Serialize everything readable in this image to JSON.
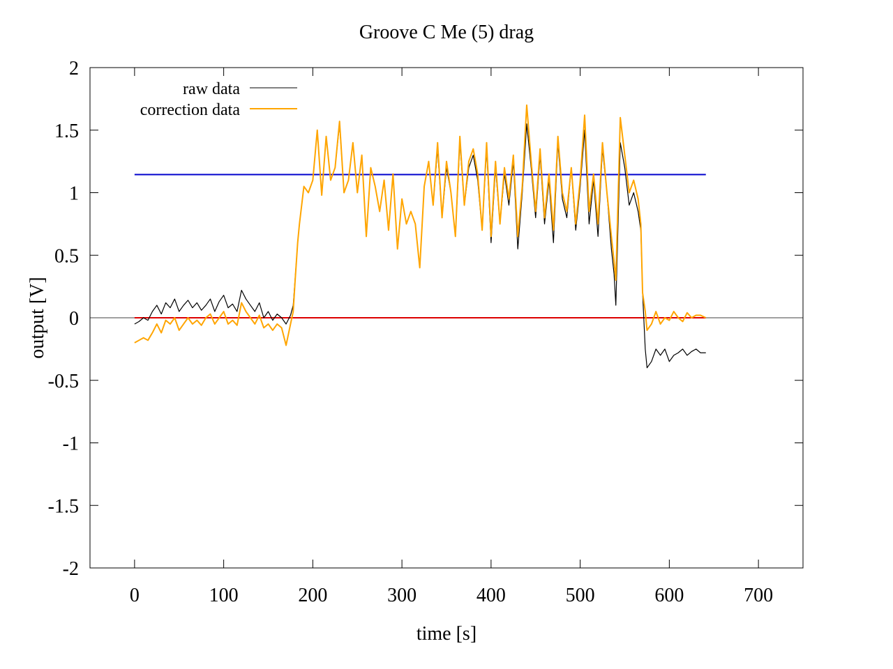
{
  "chart_data": {
    "type": "line",
    "title": "Groove C  Me (5) drag",
    "xlabel": "time [s]",
    "ylabel": "output [V]",
    "xlim": [
      -50,
      750
    ],
    "ylim": [
      -2,
      2
    ],
    "xticks": [
      0,
      100,
      200,
      300,
      400,
      500,
      600,
      700
    ],
    "yticks": [
      2,
      1.5,
      1,
      0.5,
      0,
      -0.5,
      -1,
      -1.5,
      -2
    ],
    "grid": false,
    "legend_position": "top-left",
    "reference_lines": [
      {
        "y": 0,
        "x_range": [
          -50,
          750
        ],
        "color": "#a0a0a0"
      },
      {
        "y": 1.145,
        "x_range": [
          0,
          641
        ],
        "color": "#0000cc"
      },
      {
        "y": 0,
        "x_range": [
          0,
          641
        ],
        "color": "#dd0000"
      }
    ],
    "series": [
      {
        "name": "raw data",
        "color": "#000000",
        "x": [
          0,
          5,
          10,
          15,
          20,
          25,
          30,
          35,
          40,
          45,
          50,
          55,
          60,
          65,
          70,
          75,
          80,
          85,
          90,
          95,
          100,
          105,
          110,
          115,
          120,
          125,
          130,
          135,
          140,
          145,
          150,
          155,
          160,
          165,
          170,
          175,
          178,
          180,
          183,
          185,
          190,
          195,
          200,
          205,
          210,
          215,
          220,
          225,
          230,
          235,
          240,
          245,
          250,
          255,
          260,
          265,
          270,
          275,
          280,
          285,
          290,
          295,
          300,
          305,
          310,
          315,
          320,
          325,
          330,
          335,
          340,
          345,
          350,
          355,
          360,
          365,
          370,
          375,
          380,
          385,
          390,
          395,
          400,
          405,
          410,
          415,
          420,
          425,
          430,
          435,
          440,
          445,
          450,
          455,
          460,
          465,
          470,
          475,
          480,
          485,
          490,
          495,
          500,
          505,
          510,
          515,
          520,
          525,
          530,
          535,
          538,
          540,
          545,
          550,
          555,
          560,
          565,
          568,
          570,
          573,
          575,
          580,
          585,
          590,
          595,
          600,
          605,
          610,
          615,
          620,
          625,
          630,
          635,
          641
        ],
        "y": [
          -0.05,
          -0.03,
          0.0,
          -0.02,
          0.05,
          0.1,
          0.03,
          0.12,
          0.08,
          0.15,
          0.05,
          0.1,
          0.14,
          0.08,
          0.12,
          0.06,
          0.1,
          0.15,
          0.05,
          0.13,
          0.18,
          0.08,
          0.11,
          0.05,
          0.22,
          0.15,
          0.1,
          0.05,
          0.12,
          0.0,
          0.05,
          -0.02,
          0.03,
          0.0,
          -0.05,
          0.02,
          0.1,
          0.3,
          0.6,
          0.75,
          1.05,
          1.0,
          1.1,
          1.5,
          0.98,
          1.45,
          1.1,
          1.2,
          1.55,
          1.0,
          1.1,
          1.4,
          1.0,
          1.3,
          0.65,
          1.2,
          1.05,
          0.85,
          1.1,
          0.7,
          1.15,
          0.55,
          0.95,
          0.75,
          0.85,
          0.75,
          0.4,
          1.05,
          1.25,
          0.9,
          1.35,
          0.8,
          1.2,
          1.0,
          0.65,
          1.4,
          0.9,
          1.2,
          1.3,
          1.1,
          0.7,
          1.35,
          0.6,
          1.2,
          0.75,
          1.15,
          0.9,
          1.25,
          0.55,
          1.0,
          1.55,
          1.2,
          0.8,
          1.3,
          0.75,
          1.1,
          0.6,
          1.4,
          0.95,
          0.8,
          1.2,
          0.7,
          1.05,
          1.5,
          0.75,
          1.1,
          0.65,
          1.35,
          1.0,
          0.55,
          0.35,
          0.1,
          1.4,
          1.2,
          0.9,
          1.0,
          0.85,
          0.7,
          0.2,
          -0.25,
          -0.4,
          -0.35,
          -0.25,
          -0.3,
          -0.25,
          -0.35,
          -0.3,
          -0.28,
          -0.25,
          -0.3,
          -0.27,
          -0.25,
          -0.28,
          -0.28
        ]
      },
      {
        "name": "correction data",
        "color": "#ffa500",
        "x": [
          0,
          5,
          10,
          15,
          20,
          25,
          30,
          35,
          40,
          45,
          50,
          55,
          60,
          65,
          70,
          75,
          80,
          85,
          90,
          95,
          100,
          105,
          110,
          115,
          120,
          125,
          130,
          135,
          140,
          145,
          150,
          155,
          160,
          165,
          170,
          175,
          178,
          180,
          183,
          185,
          190,
          195,
          200,
          205,
          210,
          215,
          220,
          225,
          230,
          235,
          240,
          245,
          250,
          255,
          260,
          265,
          270,
          275,
          280,
          285,
          290,
          295,
          300,
          305,
          310,
          315,
          320,
          325,
          330,
          335,
          340,
          345,
          350,
          355,
          360,
          365,
          370,
          375,
          380,
          385,
          390,
          395,
          400,
          405,
          410,
          415,
          420,
          425,
          430,
          435,
          440,
          445,
          450,
          455,
          460,
          465,
          470,
          475,
          480,
          485,
          490,
          495,
          500,
          505,
          510,
          515,
          520,
          525,
          530,
          535,
          538,
          540,
          545,
          550,
          555,
          560,
          565,
          568,
          570,
          573,
          575,
          580,
          585,
          590,
          595,
          600,
          605,
          610,
          615,
          620,
          625,
          630,
          635,
          641
        ],
        "y": [
          -0.2,
          -0.18,
          -0.16,
          -0.18,
          -0.12,
          -0.05,
          -0.12,
          -0.02,
          -0.05,
          0.0,
          -0.1,
          -0.05,
          0.0,
          -0.05,
          -0.02,
          -0.06,
          0.0,
          0.03,
          -0.05,
          0.0,
          0.05,
          -0.05,
          -0.02,
          -0.06,
          0.12,
          0.05,
          0.0,
          -0.05,
          0.02,
          -0.08,
          -0.05,
          -0.1,
          -0.05,
          -0.08,
          -0.22,
          -0.05,
          0.05,
          0.28,
          0.6,
          0.75,
          1.05,
          1.0,
          1.1,
          1.5,
          0.98,
          1.45,
          1.1,
          1.2,
          1.57,
          1.0,
          1.1,
          1.4,
          1.0,
          1.3,
          0.65,
          1.2,
          1.05,
          0.85,
          1.1,
          0.7,
          1.15,
          0.55,
          0.95,
          0.75,
          0.85,
          0.75,
          0.4,
          1.05,
          1.25,
          0.9,
          1.4,
          0.8,
          1.25,
          1.0,
          0.65,
          1.45,
          0.9,
          1.25,
          1.35,
          1.15,
          0.7,
          1.4,
          0.65,
          1.25,
          0.75,
          1.2,
          0.95,
          1.3,
          0.65,
          1.05,
          1.7,
          1.25,
          0.85,
          1.35,
          0.8,
          1.15,
          0.7,
          1.45,
          1.0,
          0.85,
          1.2,
          0.75,
          1.1,
          1.62,
          0.85,
          1.15,
          0.75,
          1.4,
          1.0,
          0.65,
          0.45,
          0.3,
          1.6,
          1.3,
          1.0,
          1.1,
          0.95,
          0.75,
          0.2,
          0.05,
          -0.1,
          -0.05,
          0.05,
          -0.05,
          0.0,
          -0.02,
          0.05,
          0.0,
          -0.03,
          0.04,
          0.0,
          0.02,
          0.02,
          0.0
        ]
      }
    ]
  }
}
